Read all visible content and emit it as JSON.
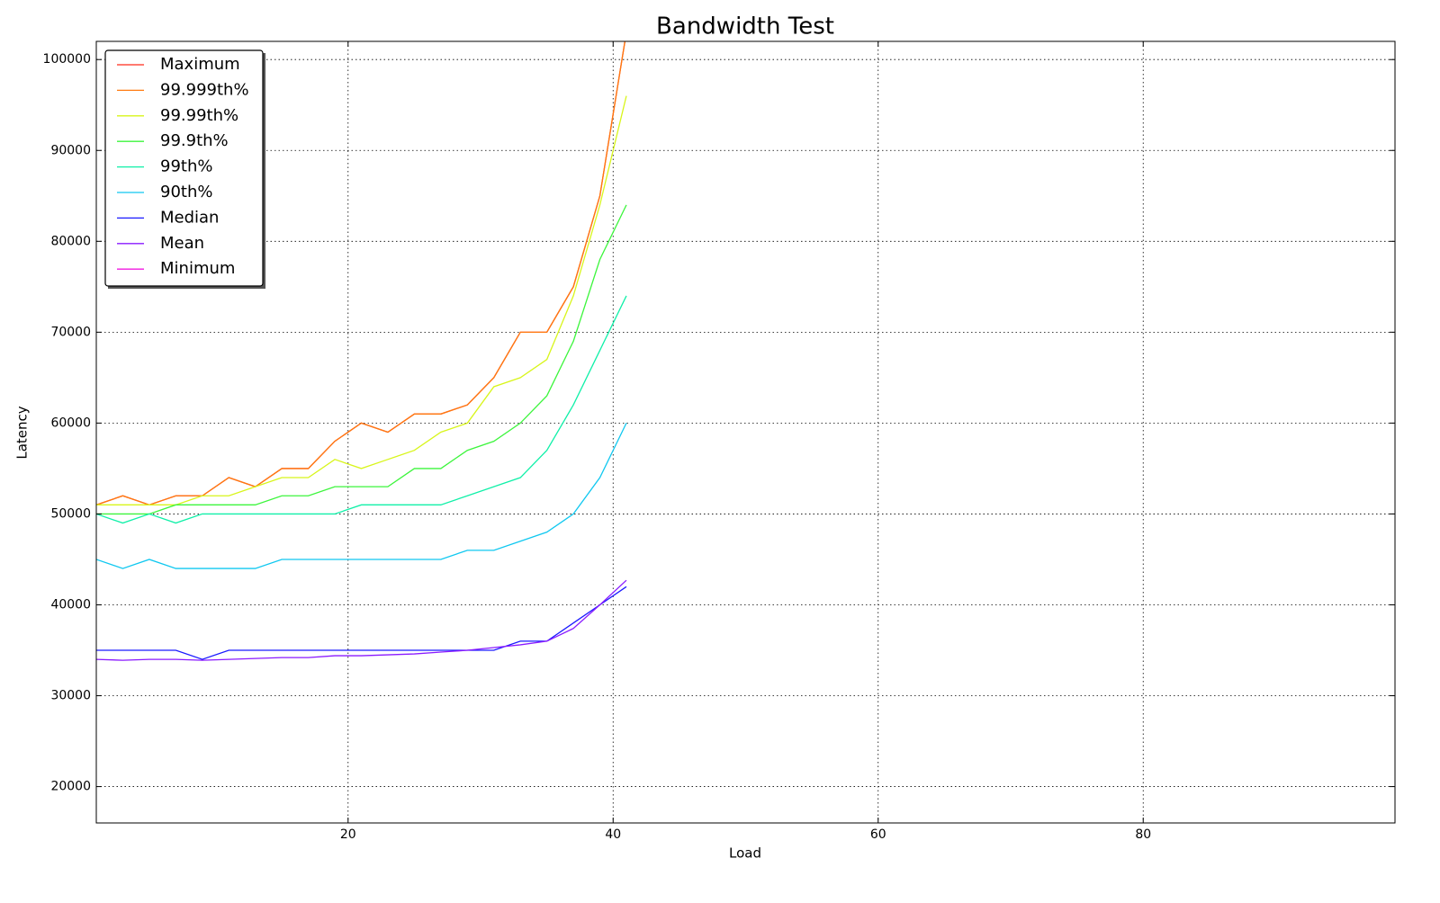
{
  "chart_data": {
    "type": "line",
    "title": "Bandwidth Test",
    "xlabel": "Load",
    "ylabel": "Latency",
    "x": [
      1,
      3,
      5,
      7,
      9,
      11,
      13,
      15,
      17,
      19,
      21,
      23,
      25,
      27,
      29,
      31,
      33,
      35,
      37,
      39,
      41
    ],
    "series": [
      {
        "name": "Maximum",
        "color": "#ff2a1a",
        "values": [
          51000,
          52000,
          51000,
          52000,
          52000,
          54000,
          53000,
          55000,
          55000,
          58000,
          60000,
          59000,
          61000,
          61000,
          62000,
          65000,
          70000,
          70000,
          75000,
          85000,
          103000
        ]
      },
      {
        "name": "99.999th%",
        "color": "#ff7a10",
        "values": [
          51000,
          52000,
          51000,
          52000,
          52000,
          54000,
          53000,
          55000,
          55000,
          58000,
          60000,
          59000,
          61000,
          61000,
          62000,
          65000,
          70000,
          70000,
          75000,
          85000,
          103000
        ]
      },
      {
        "name": "99.99th%",
        "color": "#d8f51a",
        "values": [
          51000,
          51000,
          51000,
          51000,
          52000,
          52000,
          53000,
          54000,
          54000,
          56000,
          55000,
          56000,
          57000,
          59000,
          60000,
          64000,
          65000,
          67000,
          74000,
          84000,
          96000
        ]
      },
      {
        "name": "99.9th%",
        "color": "#3cf53c",
        "values": [
          50000,
          50000,
          50000,
          51000,
          51000,
          51000,
          51000,
          52000,
          52000,
          53000,
          53000,
          53000,
          55000,
          55000,
          57000,
          58000,
          60000,
          63000,
          69000,
          78000,
          84000
        ]
      },
      {
        "name": "99th%",
        "color": "#10f0a8",
        "values": [
          50000,
          49000,
          50000,
          49000,
          50000,
          50000,
          50000,
          50000,
          50000,
          50000,
          51000,
          51000,
          51000,
          51000,
          52000,
          53000,
          54000,
          57000,
          62000,
          68000,
          74000
        ]
      },
      {
        "name": "90th%",
        "color": "#10c8f0",
        "values": [
          45000,
          44000,
          45000,
          44000,
          44000,
          44000,
          44000,
          45000,
          45000,
          45000,
          45000,
          45000,
          45000,
          45000,
          46000,
          46000,
          47000,
          48000,
          50000,
          54000,
          60000
        ]
      },
      {
        "name": "Median",
        "color": "#1a1aff",
        "values": [
          35000,
          35000,
          35000,
          35000,
          34000,
          35000,
          35000,
          35000,
          35000,
          35000,
          35000,
          35000,
          35000,
          35000,
          35000,
          35000,
          36000,
          36000,
          38000,
          40000,
          42000
        ]
      },
      {
        "name": "Mean",
        "color": "#8a1aff",
        "values": [
          34000,
          33900,
          34000,
          34000,
          33900,
          34000,
          34100,
          34200,
          34200,
          34400,
          34400,
          34500,
          34600,
          34800,
          35000,
          35300,
          35600,
          36000,
          37400,
          40000,
          42700
        ]
      },
      {
        "name": "Minimum",
        "color": "#f01ae0",
        "values": [
          null,
          null,
          null,
          null,
          null,
          null,
          null,
          null,
          null,
          null,
          null,
          null,
          null,
          null,
          null,
          null,
          null,
          null,
          null,
          null,
          null
        ]
      }
    ],
    "xlim": [
      1,
      99
    ],
    "xticks": [
      20,
      40,
      60,
      80
    ],
    "ylim": [
      16000,
      102000
    ],
    "yticks": [
      20000,
      30000,
      40000,
      50000,
      60000,
      70000,
      80000,
      90000,
      100000
    ],
    "grid": true,
    "legend": "upper left"
  }
}
